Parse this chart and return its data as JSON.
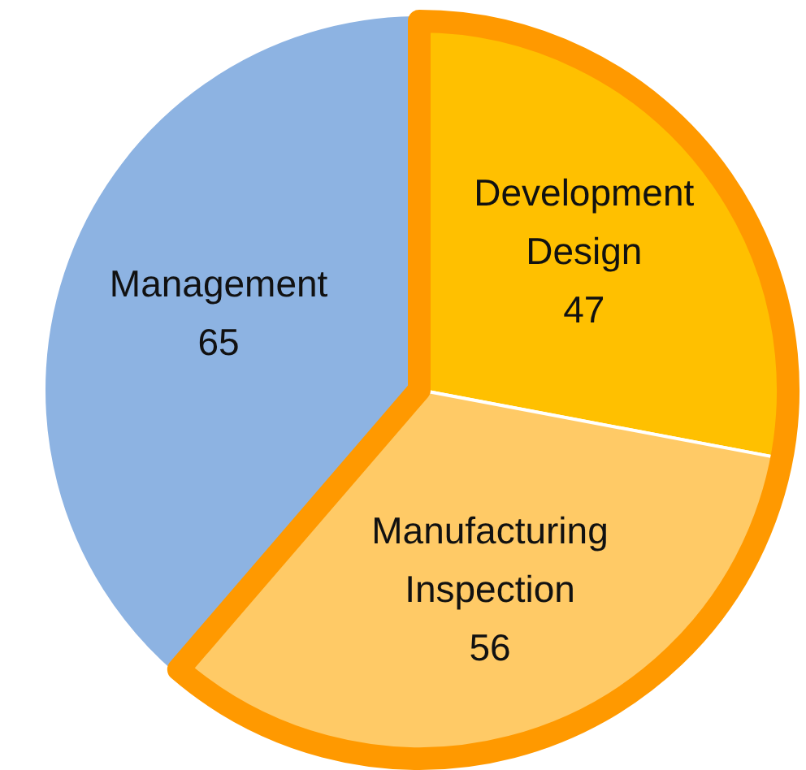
{
  "chart_data": {
    "type": "pie",
    "categories": [
      "Development Design",
      "Manufacturing Inspection",
      "Management"
    ],
    "values": [
      47,
      56,
      65
    ],
    "colors": [
      "#ffc000",
      "#ffca66",
      "#8db3e2"
    ],
    "data_labels": true
  }
}
